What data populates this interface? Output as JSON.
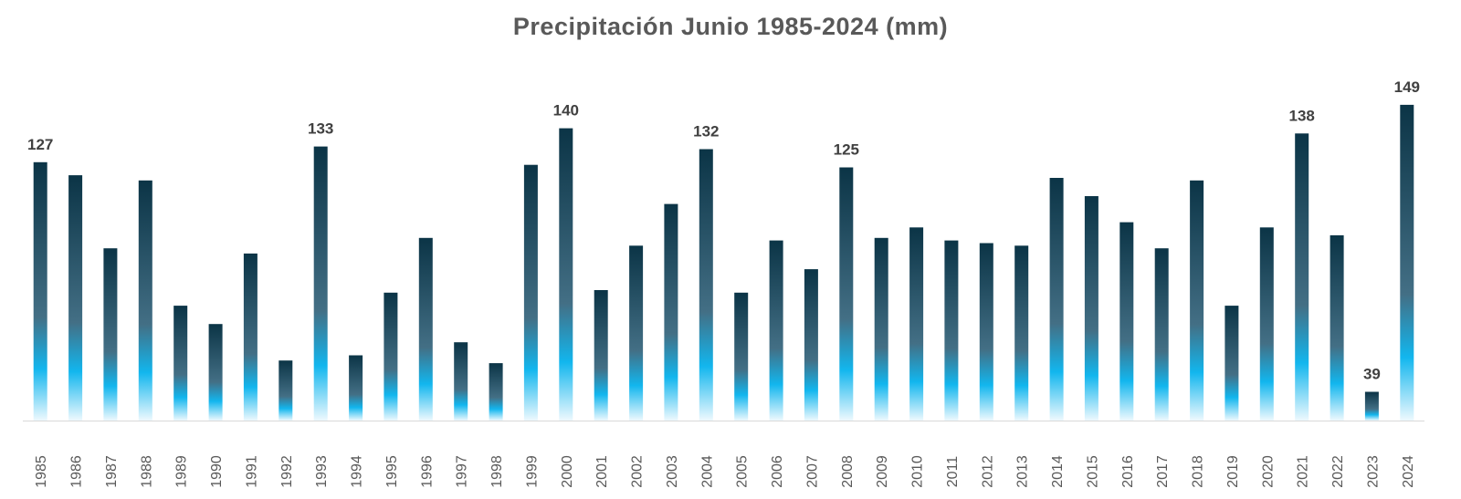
{
  "chart_data": {
    "type": "bar",
    "title": "Precipitación Junio 1985-2024 (mm)",
    "xlabel": "",
    "ylabel": "",
    "grid": false,
    "legend": "none",
    "categories": [
      "1985",
      "1986",
      "1987",
      "1988",
      "1989",
      "1990",
      "1991",
      "1992",
      "1993",
      "1994",
      "1995",
      "1996",
      "1997",
      "1998",
      "1999",
      "2000",
      "2001",
      "2002",
      "2003",
      "2004",
      "2005",
      "2006",
      "2007",
      "2008",
      "2009",
      "2010",
      "2011",
      "2012",
      "2013",
      "2014",
      "2015",
      "2016",
      "2017",
      "2018",
      "2019",
      "2020",
      "2021",
      "2022",
      "2023",
      "2024"
    ],
    "values": [
      127,
      122,
      94,
      120,
      72,
      65,
      92,
      51,
      133,
      53,
      77,
      98,
      58,
      50,
      126,
      140,
      78,
      95,
      111,
      132,
      77,
      97,
      86,
      125,
      98,
      102,
      97,
      96,
      95,
      121,
      114,
      104,
      94,
      120,
      72,
      102,
      138,
      99,
      39,
      149
    ],
    "labeled_years": [
      "1985",
      "1993",
      "2000",
      "2004",
      "2008",
      "2021",
      "2023",
      "2024"
    ],
    "ylim": [
      28,
      150
    ],
    "colors": {
      "bar_top": "#0b3446",
      "bar_mid": "#436f85",
      "bar_bright": "#12b6ee",
      "bar_bottom": "#eef9fe",
      "axis": "#d9d9d9"
    }
  }
}
